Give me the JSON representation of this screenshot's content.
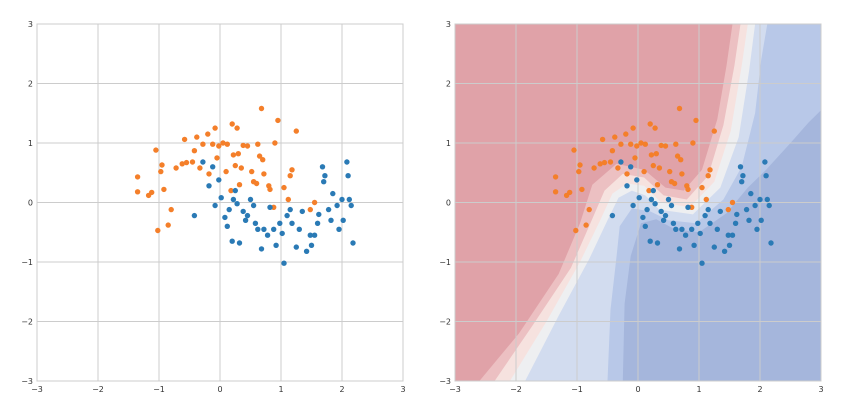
{
  "chart_data": [
    {
      "type": "scatter",
      "title": "",
      "xlabel": "",
      "ylabel": "",
      "xlim": [
        -3,
        3
      ],
      "ylim": [
        -3,
        3
      ],
      "xticks": [
        -3,
        -2,
        -1,
        0,
        1,
        2,
        3
      ],
      "yticks": [
        -3,
        -2,
        -1,
        0,
        1,
        2,
        3
      ],
      "xtick_labels": [
        "−3",
        "−2",
        "−1",
        "0",
        "1",
        "2",
        "3"
      ],
      "ytick_labels": [
        "−3",
        "−2",
        "−1",
        "0",
        "1",
        "2",
        "3"
      ],
      "grid": true,
      "background": "plain",
      "series": [
        {
          "color": "#f47f2a",
          "points": [
            [
              -1.35,
              0.43
            ],
            [
              -1.35,
              0.18
            ],
            [
              -1.17,
              0.12
            ],
            [
              -1.12,
              0.17
            ],
            [
              -1.05,
              0.88
            ],
            [
              -1.02,
              -0.47
            ],
            [
              -0.97,
              0.52
            ],
            [
              -0.95,
              0.63
            ],
            [
              -0.92,
              0.22
            ],
            [
              -0.85,
              -0.38
            ],
            [
              -0.8,
              -0.12
            ],
            [
              -0.72,
              0.58
            ],
            [
              -0.62,
              0.65
            ],
            [
              -0.58,
              1.06
            ],
            [
              -0.55,
              0.67
            ],
            [
              -0.45,
              0.68
            ],
            [
              -0.42,
              0.87
            ],
            [
              -0.38,
              1.1
            ],
            [
              -0.33,
              0.58
            ],
            [
              -0.28,
              0.98
            ],
            [
              -0.2,
              1.15
            ],
            [
              -0.18,
              0.48
            ],
            [
              -0.12,
              0.98
            ],
            [
              -0.08,
              1.25
            ],
            [
              -0.05,
              0.75
            ],
            [
              -0.02,
              0.95
            ],
            [
              0.05,
              1.0
            ],
            [
              0.1,
              0.52
            ],
            [
              0.12,
              0.98
            ],
            [
              0.18,
              0.2
            ],
            [
              0.2,
              1.32
            ],
            [
              0.22,
              0.8
            ],
            [
              0.25,
              0.62
            ],
            [
              0.28,
              1.25
            ],
            [
              0.3,
              0.82
            ],
            [
              0.32,
              0.3
            ],
            [
              0.35,
              0.58
            ],
            [
              0.38,
              0.96
            ],
            [
              0.45,
              0.95
            ],
            [
              0.52,
              0.52
            ],
            [
              0.55,
              0.35
            ],
            [
              0.6,
              0.32
            ],
            [
              0.62,
              0.98
            ],
            [
              0.65,
              0.78
            ],
            [
              0.68,
              1.58
            ],
            [
              0.7,
              0.72
            ],
            [
              0.72,
              0.48
            ],
            [
              0.8,
              0.28
            ],
            [
              0.82,
              0.22
            ],
            [
              0.88,
              -0.08
            ],
            [
              0.9,
              1.0
            ],
            [
              0.95,
              1.38
            ],
            [
              1.05,
              0.25
            ],
            [
              1.12,
              0.05
            ],
            [
              1.15,
              0.45
            ],
            [
              1.18,
              0.55
            ],
            [
              1.25,
              1.2
            ],
            [
              1.48,
              -0.12
            ],
            [
              1.55,
              0.0
            ]
          ]
        },
        {
          "color": "#2a7ab5",
          "points": [
            [
              -0.42,
              -0.22
            ],
            [
              -0.28,
              0.68
            ],
            [
              -0.18,
              0.28
            ],
            [
              -0.12,
              0.6
            ],
            [
              -0.08,
              -0.05
            ],
            [
              -0.02,
              0.38
            ],
            [
              0.02,
              0.08
            ],
            [
              0.08,
              -0.25
            ],
            [
              0.12,
              -0.4
            ],
            [
              0.15,
              -0.12
            ],
            [
              0.2,
              -0.65
            ],
            [
              0.22,
              0.05
            ],
            [
              0.25,
              0.2
            ],
            [
              0.28,
              -0.02
            ],
            [
              0.32,
              -0.68
            ],
            [
              0.38,
              -0.15
            ],
            [
              0.42,
              -0.3
            ],
            [
              0.45,
              -0.22
            ],
            [
              0.5,
              0.05
            ],
            [
              0.55,
              -0.05
            ],
            [
              0.58,
              -0.35
            ],
            [
              0.62,
              -0.45
            ],
            [
              0.68,
              -0.78
            ],
            [
              0.72,
              -0.45
            ],
            [
              0.78,
              -0.55
            ],
            [
              0.82,
              -0.08
            ],
            [
              0.88,
              -0.45
            ],
            [
              0.92,
              -0.72
            ],
            [
              0.98,
              -0.35
            ],
            [
              1.02,
              -0.52
            ],
            [
              1.05,
              -1.02
            ],
            [
              1.1,
              -0.22
            ],
            [
              1.15,
              -0.12
            ],
            [
              1.18,
              -0.35
            ],
            [
              1.25,
              -0.75
            ],
            [
              1.3,
              -0.45
            ],
            [
              1.35,
              -0.15
            ],
            [
              1.42,
              -0.82
            ],
            [
              1.48,
              -0.55
            ],
            [
              1.5,
              -0.72
            ],
            [
              1.55,
              -0.55
            ],
            [
              1.6,
              -0.35
            ],
            [
              1.62,
              -0.2
            ],
            [
              1.68,
              0.6
            ],
            [
              1.7,
              0.35
            ],
            [
              1.72,
              0.45
            ],
            [
              1.78,
              -0.12
            ],
            [
              1.82,
              -0.3
            ],
            [
              1.85,
              0.15
            ],
            [
              1.92,
              -0.05
            ],
            [
              2.0,
              0.05
            ],
            [
              2.02,
              -0.3
            ],
            [
              2.08,
              0.68
            ],
            [
              2.1,
              0.45
            ],
            [
              2.12,
              0.05
            ],
            [
              2.15,
              -0.05
            ],
            [
              2.18,
              -0.68
            ],
            [
              1.95,
              -0.45
            ]
          ]
        }
      ]
    },
    {
      "type": "scatter",
      "title": "",
      "xlabel": "",
      "ylabel": "",
      "xlim": [
        -3,
        3
      ],
      "ylim": [
        -3,
        3
      ],
      "xticks": [
        -3,
        -2,
        -1,
        0,
        1,
        2,
        3
      ],
      "yticks": [
        -3,
        -2,
        -1,
        0,
        1,
        2,
        3
      ],
      "xtick_labels": [
        "−3",
        "−2",
        "−1",
        "0",
        "1",
        "2",
        "3"
      ],
      "ytick_labels": [
        "−3",
        "−2",
        "−1",
        "0",
        "1",
        "2",
        "3"
      ],
      "grid": true,
      "background": "decision-boundary",
      "region_colors": [
        "#e0a2a8",
        "#ecc0c2",
        "#f6e2df",
        "#eeeff1",
        "#d2dcef",
        "#b8c8e8",
        "#a5b6dc"
      ],
      "series_ref": 0
    }
  ]
}
